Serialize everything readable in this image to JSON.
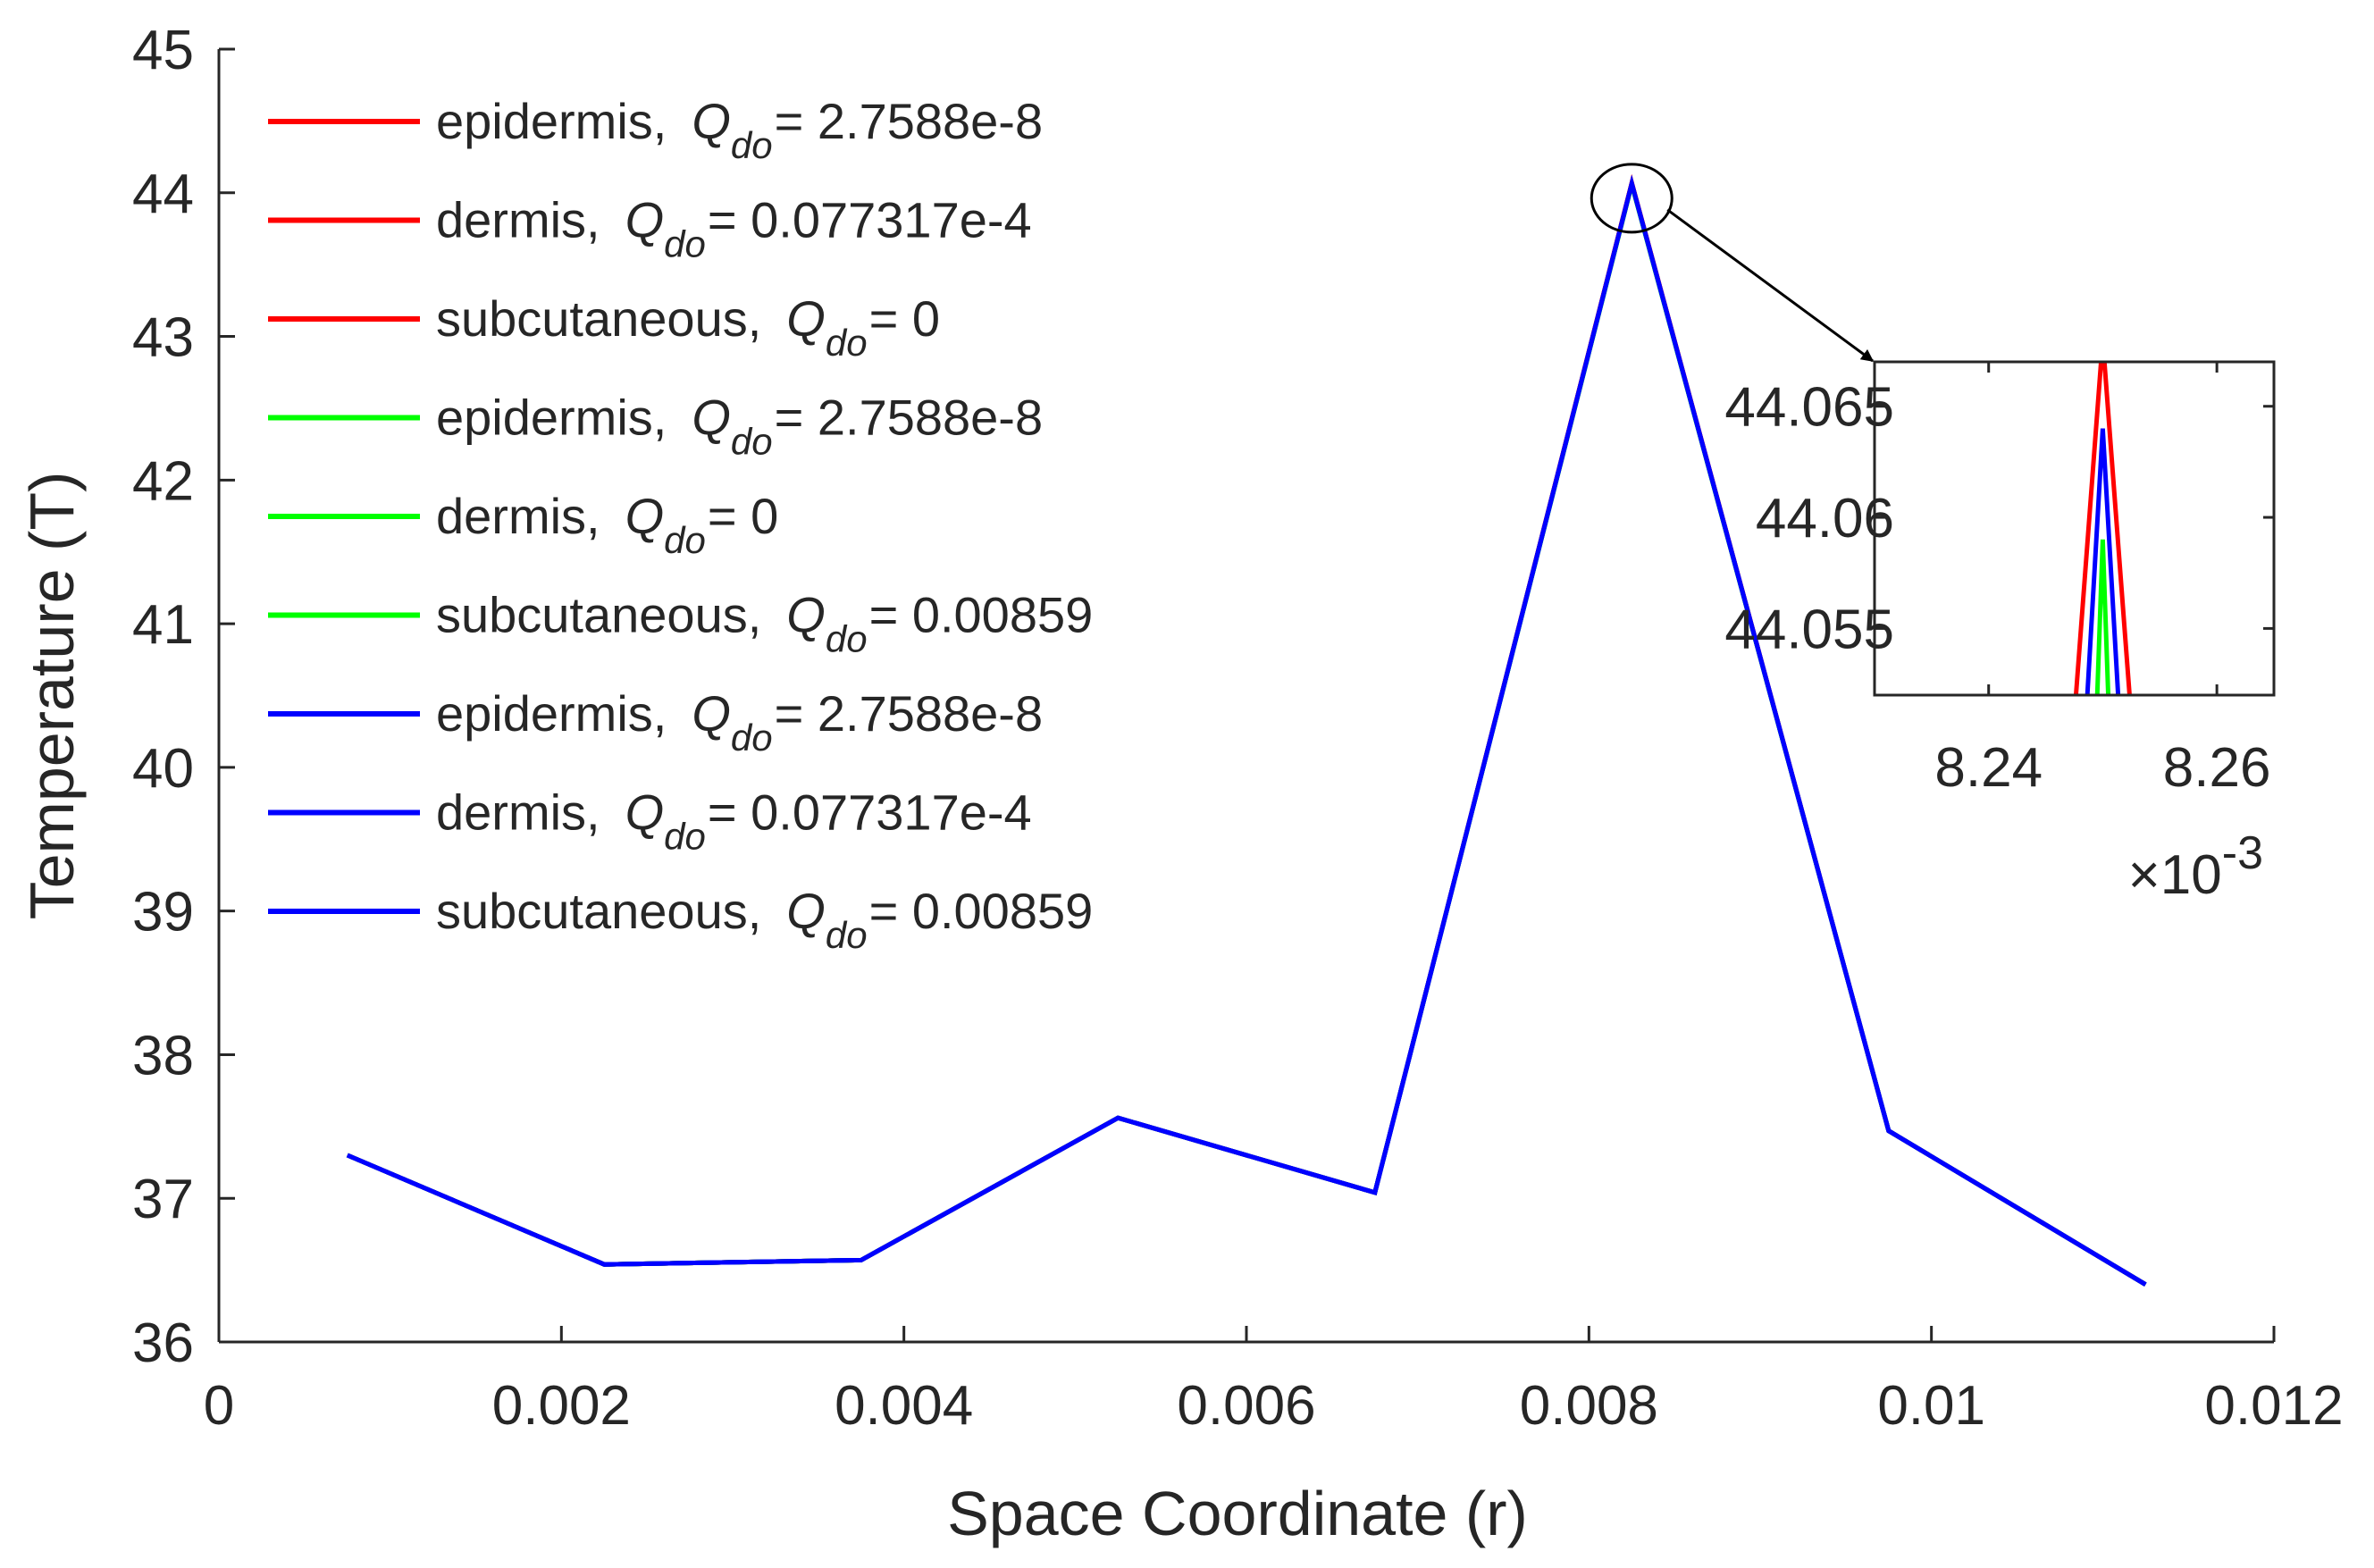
{
  "chart_data": {
    "type": "line",
    "xlabel": "Space Coordinate (r)",
    "ylabel": "Temperature (T)",
    "xlim": [
      0,
      0.012
    ],
    "ylim": [
      36,
      45
    ],
    "xticks": [
      0,
      0.002,
      0.004,
      0.006,
      0.008,
      0.01,
      0.012
    ],
    "xtick_labels": [
      "0",
      "0.002",
      "0.004",
      "0.006",
      "0.008",
      "0.01",
      "0.012"
    ],
    "yticks": [
      36,
      37,
      38,
      39,
      40,
      41,
      42,
      43,
      44,
      45
    ],
    "ytick_labels": [
      "36",
      "37",
      "38",
      "39",
      "40",
      "41",
      "42",
      "43",
      "44",
      "45"
    ],
    "x": [
      0.00075,
      0.00225,
      0.00375,
      0.00525,
      0.00675,
      0.00825,
      0.00975,
      0.01125
    ],
    "series": [
      {
        "name": "epidermis, Q_do = 2.7588e-8",
        "color": "#ff0000",
        "values": [
          37.3,
          36.54,
          36.57,
          37.56,
          37.04,
          44.068,
          37.47,
          36.4
        ]
      },
      {
        "name": "dermis, Q_do = 0.077317e-4",
        "color": "#ff0000",
        "values": [
          37.3,
          36.54,
          36.57,
          37.56,
          37.04,
          44.068,
          37.47,
          36.4
        ]
      },
      {
        "name": "subcutaneous, Q_do = 0",
        "color": "#ff0000",
        "values": [
          37.3,
          36.54,
          36.57,
          37.56,
          37.04,
          44.068,
          37.47,
          36.4
        ]
      },
      {
        "name": "epidermis, Q_do = 2.7588e-8",
        "color": "#00ff00",
        "values": [
          37.3,
          36.54,
          36.57,
          37.56,
          37.04,
          44.059,
          37.47,
          36.4
        ]
      },
      {
        "name": "dermis, Q_do = 0",
        "color": "#00ff00",
        "values": [
          37.3,
          36.54,
          36.57,
          37.56,
          37.04,
          44.059,
          37.47,
          36.4
        ]
      },
      {
        "name": "subcutaneous, Q_do = 0.00859",
        "color": "#00ff00",
        "values": [
          37.3,
          36.54,
          36.57,
          37.56,
          37.04,
          44.059,
          37.47,
          36.4
        ]
      },
      {
        "name": "epidermis, Q_do = 2.7588e-8",
        "color": "#0000ff",
        "values": [
          37.3,
          36.54,
          36.57,
          37.56,
          37.04,
          44.064,
          37.47,
          36.4
        ]
      },
      {
        "name": "dermis, Q_do = 0.077317e-4",
        "color": "#0000ff",
        "values": [
          37.3,
          36.54,
          36.57,
          37.56,
          37.04,
          44.064,
          37.47,
          36.4
        ]
      },
      {
        "name": "subcutaneous, Q_do = 0.00859",
        "color": "#0000ff",
        "values": [
          37.3,
          36.54,
          36.57,
          37.56,
          37.04,
          44.064,
          37.47,
          36.4
        ]
      }
    ],
    "legend": {
      "location": "top-left",
      "entries": [
        {
          "color": "#ff0000",
          "prefix": "epidermis,",
          "symbol": "Q",
          "subscript": "do",
          "suffix": "= 2.7588e-8"
        },
        {
          "color": "#ff0000",
          "prefix": "dermis,",
          "symbol": "Q",
          "subscript": "do",
          "suffix": "= 0.077317e-4"
        },
        {
          "color": "#ff0000",
          "prefix": "subcutaneous,",
          "symbol": "Q",
          "subscript": "do",
          "suffix": "= 0"
        },
        {
          "color": "#00ff00",
          "prefix": "epidermis,",
          "symbol": "Q",
          "subscript": "do",
          "suffix": "= 2.7588e-8"
        },
        {
          "color": "#00ff00",
          "prefix": "dermis,",
          "symbol": "Q",
          "subscript": "do",
          "suffix": "= 0"
        },
        {
          "color": "#00ff00",
          "prefix": "subcutaneous,",
          "symbol": "Q",
          "subscript": "do",
          "suffix": "= 0.00859"
        },
        {
          "color": "#0000ff",
          "prefix": "epidermis,",
          "symbol": "Q",
          "subscript": "do",
          "suffix": "= 2.7588e-8"
        },
        {
          "color": "#0000ff",
          "prefix": "dermis,",
          "symbol": "Q",
          "subscript": "do",
          "suffix": "= 0.077317e-4"
        },
        {
          "color": "#0000ff",
          "prefix": "subcutaneous,",
          "symbol": "Q",
          "subscript": "do",
          "suffix": "= 0.00859"
        }
      ]
    },
    "annotation": "ellipse around peak at r = 0.00825 with arrow to zoomed inset",
    "inset": {
      "xlim": [
        8.23,
        8.265
      ],
      "ylim": [
        44.052,
        44.067
      ],
      "xticks": [
        8.24,
        8.26
      ],
      "xtick_labels": [
        "8.24",
        "8.26"
      ],
      "yticks": [
        44.055,
        44.06,
        44.065
      ],
      "ytick_labels": [
        "44.055",
        "44.06",
        "44.065"
      ],
      "x_multiplier_base": "×10",
      "x_multiplier_exponent": "-3",
      "peaks": [
        {
          "color": "#ff0000",
          "x": 8.25,
          "peak": 44.068,
          "half_width": 0.00235
        },
        {
          "color": "#0000ff",
          "x": 8.25,
          "peak": 44.064,
          "half_width": 0.0018
        },
        {
          "color": "#00ff00",
          "x": 8.25,
          "peak": 44.059,
          "half_width": 0.0011
        }
      ]
    }
  }
}
